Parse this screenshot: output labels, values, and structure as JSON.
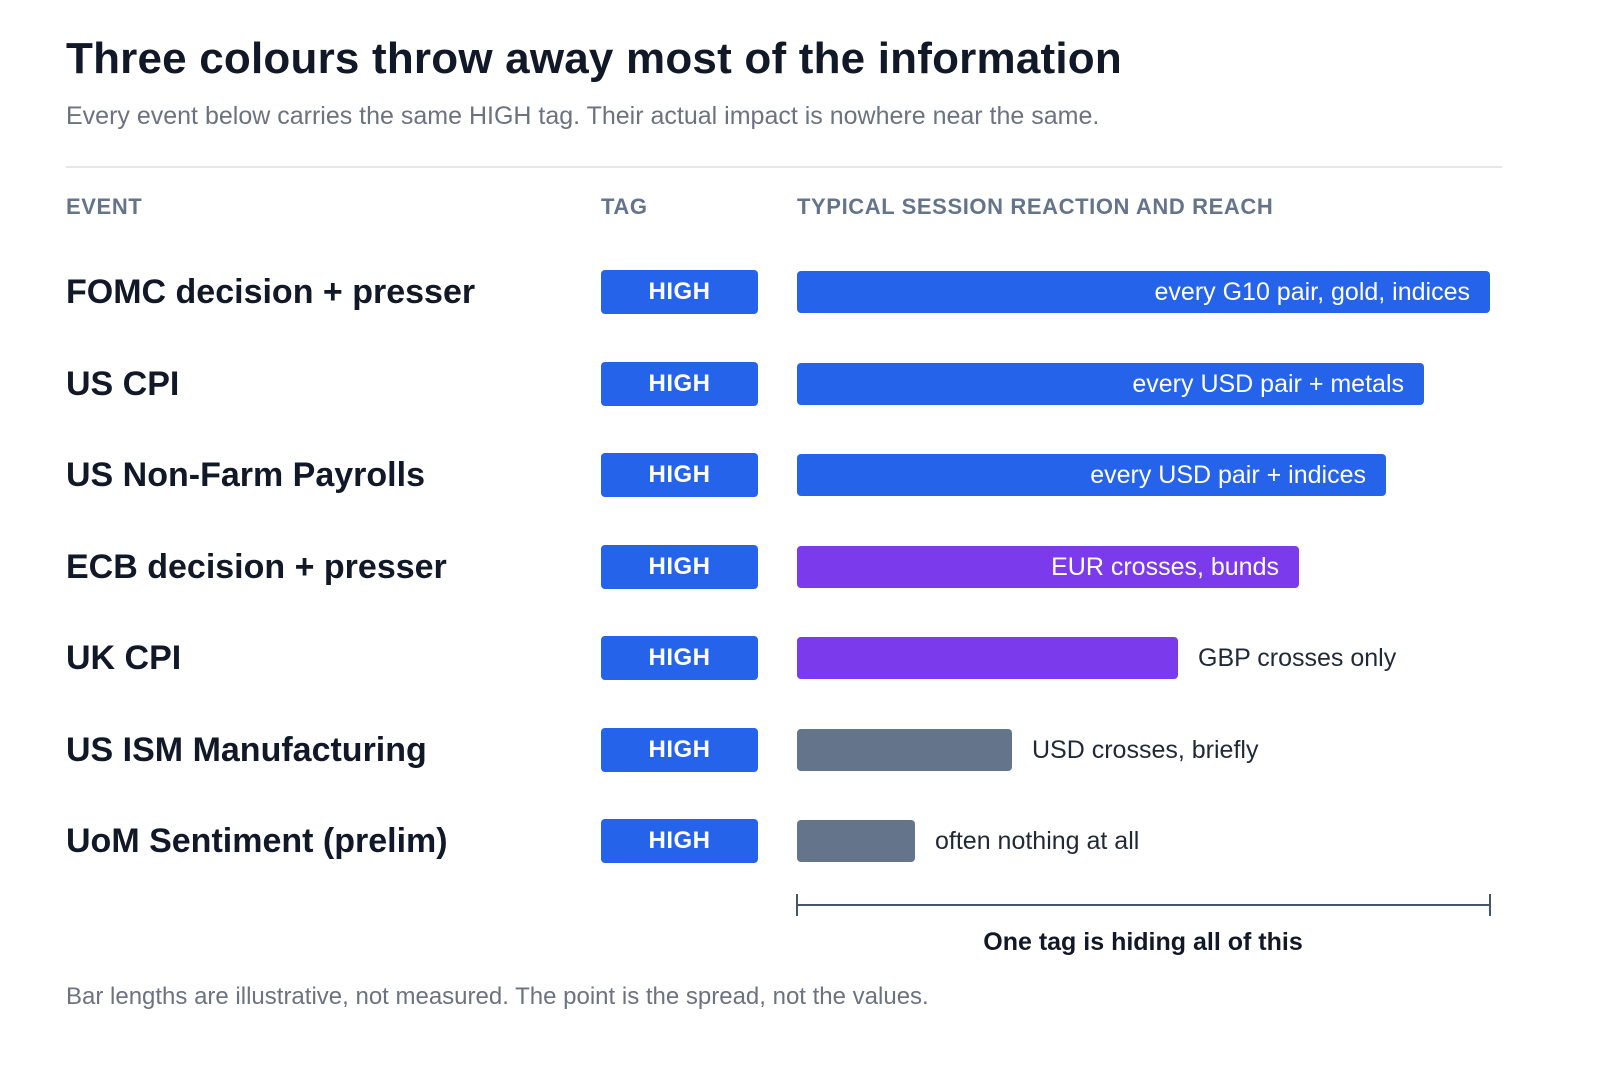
{
  "header": {
    "title": "Three colours throw away most of the information",
    "subtitle": "Every event below carries the same HIGH tag. Their actual impact is nowhere near the same."
  },
  "columns": {
    "event": "EVENT",
    "tag": "TAG",
    "reaction": "TYPICAL SESSION REACTION AND REACH"
  },
  "colors": {
    "tag": "#2563eb",
    "blue": "#2563eb",
    "purple": "#7c3aed",
    "slate": "#64748b"
  },
  "chart_data": {
    "type": "bar",
    "orientation": "horizontal",
    "categories": [
      "FOMC decision + presser",
      "US CPI",
      "US Non-Farm Payrolls",
      "ECB decision + presser",
      "UK CPI",
      "US ISM Manufacturing",
      "UoM Sentiment (prelim)"
    ],
    "tags": [
      "HIGH",
      "HIGH",
      "HIGH",
      "HIGH",
      "HIGH",
      "HIGH",
      "HIGH"
    ],
    "values": [
      100,
      90.5,
      85,
      72.5,
      55,
      31,
      17
    ],
    "value_unit": "percent of full width (illustrative)",
    "xlim": [
      0,
      100
    ],
    "bar_labels": [
      "every G10 pair, gold, indices",
      "every USD pair + metals",
      "every USD pair + indices",
      "EUR crosses, bunds",
      "GBP crosses only",
      "USD crosses, briefly",
      "often nothing at all"
    ],
    "bar_colors": [
      "blue",
      "blue",
      "blue",
      "purple",
      "purple",
      "slate",
      "slate"
    ],
    "label_inside": [
      true,
      true,
      true,
      true,
      false,
      false,
      false
    ],
    "bracket_caption": "One tag is hiding all of this",
    "footnote": "Bar lengths are illustrative, not measured. The point is the spread, not the values."
  }
}
